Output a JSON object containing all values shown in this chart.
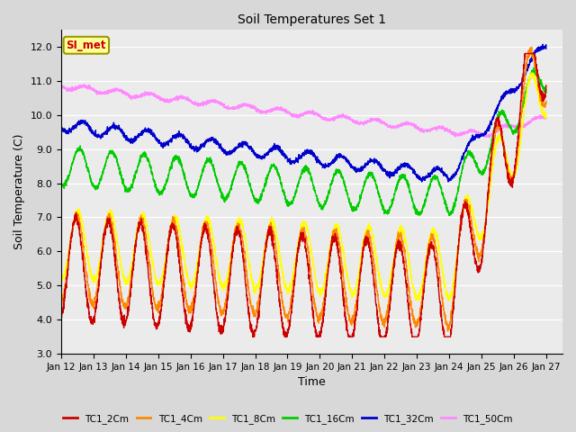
{
  "title": "Soil Temperatures Set 1",
  "xlabel": "Time",
  "ylabel": "Soil Temperature (C)",
  "ylim": [
    3.0,
    12.5
  ],
  "yticks": [
    3.0,
    4.0,
    5.0,
    6.0,
    7.0,
    8.0,
    9.0,
    10.0,
    11.0,
    12.0
  ],
  "x_tick_labels": [
    "Jan 12",
    "Jan 13",
    "Jan 14",
    "Jan 15",
    "Jan 16",
    "Jan 17",
    "Jan 18",
    "Jan 19",
    "Jan 20",
    "Jan 21",
    "Jan 22",
    "Jan 23",
    "Jan 24",
    "Jan 25",
    "Jan 26",
    "Jan 27"
  ],
  "legend_label": "SI_met",
  "series_colors": {
    "TC1_2Cm": "#cc0000",
    "TC1_4Cm": "#ff8800",
    "TC1_8Cm": "#ffff00",
    "TC1_16Cm": "#00cc00",
    "TC1_32Cm": "#0000cc",
    "TC1_50Cm": "#ff88ff"
  },
  "background_color": "#d8d8d8",
  "plot_bg_color": "#ebebeb",
  "grid_color": "#ffffff",
  "figwidth": 6.4,
  "figheight": 4.8,
  "dpi": 100
}
